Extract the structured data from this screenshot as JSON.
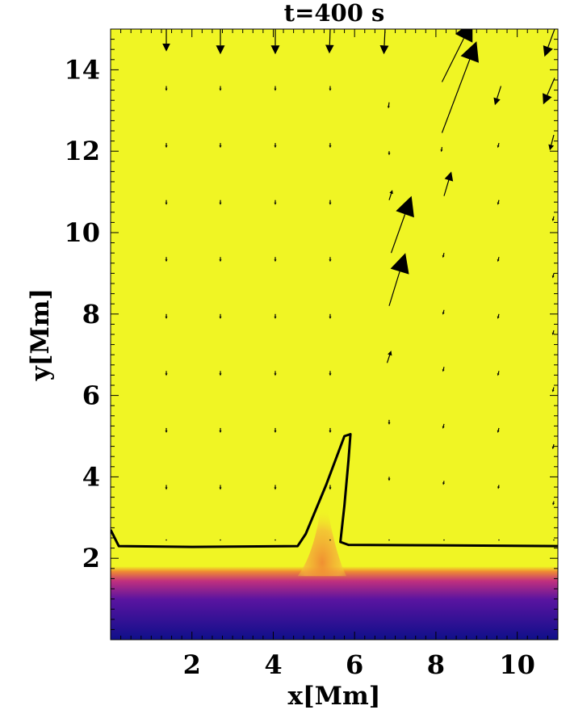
{
  "chart_data": {
    "type": "heatmap",
    "title": "t=400 s",
    "xlabel": "x[Mm]",
    "ylabel": "y[Mm]",
    "xlim": [
      0,
      11
    ],
    "ylim": [
      0,
      15
    ],
    "x_ticks": [
      {
        "value": 2,
        "label": "2"
      },
      {
        "value": 4,
        "label": "4"
      },
      {
        "value": 6,
        "label": "6"
      },
      {
        "value": 8,
        "label": "8"
      },
      {
        "value": 10,
        "label": "10"
      }
    ],
    "y_ticks": [
      {
        "value": 2,
        "label": "2"
      },
      {
        "value": 4,
        "label": "4"
      },
      {
        "value": 6,
        "label": "6"
      },
      {
        "value": 8,
        "label": "8"
      },
      {
        "value": 10,
        "label": "10"
      },
      {
        "value": 12,
        "label": "12"
      },
      {
        "value": 14,
        "label": "14"
      }
    ],
    "colormap": [
      "#0f0f8a",
      "#5a14a0",
      "#c0307e",
      "#f08a32",
      "#f0f524"
    ],
    "background_color": "#f0f524",
    "layers": {
      "dense_layer_top_y": 1.8,
      "colormap_direction": "y ascending low-to-high"
    },
    "plume": {
      "x": [
        4.6,
        5.8
      ],
      "y": [
        1.8,
        3.8
      ]
    },
    "contour": [
      [
        0.0,
        2.7
      ],
      [
        0.2,
        2.3
      ],
      [
        2.0,
        2.28
      ],
      [
        4.6,
        2.3
      ],
      [
        4.8,
        2.6
      ],
      [
        5.3,
        3.8
      ],
      [
        5.75,
        5.0
      ],
      [
        5.9,
        5.05
      ],
      [
        5.85,
        4.4
      ],
      [
        5.75,
        3.3
      ],
      [
        5.65,
        2.4
      ],
      [
        5.85,
        2.33
      ],
      [
        8.0,
        2.32
      ],
      [
        11.0,
        2.3
      ]
    ],
    "arrows": [
      {
        "x": 1.37,
        "y": 15.0,
        "dx": 0.0,
        "dy": -0.55
      },
      {
        "x": 2.7,
        "y": 15.0,
        "dx": 0.0,
        "dy": -0.62
      },
      {
        "x": 4.05,
        "y": 15.0,
        "dx": 0.0,
        "dy": -0.62
      },
      {
        "x": 5.4,
        "y": 15.0,
        "dx": -0.02,
        "dy": -0.6
      },
      {
        "x": 6.75,
        "y": 15.0,
        "dx": -0.03,
        "dy": -0.62
      },
      {
        "x": 8.15,
        "y": 13.7,
        "dx": 0.75,
        "dy": 1.5
      },
      {
        "x": 8.15,
        "y": 12.45,
        "dx": 0.85,
        "dy": 2.25
      },
      {
        "x": 10.92,
        "y": 15.0,
        "dx": -0.25,
        "dy": -0.68
      },
      {
        "x": 9.6,
        "y": 13.6,
        "dx": -0.15,
        "dy": -0.47
      },
      {
        "x": 10.92,
        "y": 13.8,
        "dx": -0.28,
        "dy": -0.65
      },
      {
        "x": 10.9,
        "y": 12.4,
        "dx": -0.1,
        "dy": -0.38
      },
      {
        "x": 6.9,
        "y": 9.5,
        "dx": 0.5,
        "dy": 1.4
      },
      {
        "x": 6.85,
        "y": 8.2,
        "dx": 0.4,
        "dy": 1.3
      },
      {
        "x": 8.2,
        "y": 10.9,
        "dx": 0.18,
        "dy": 0.6
      },
      {
        "x": 6.8,
        "y": 6.8,
        "dx": 0.1,
        "dy": 0.3
      },
      {
        "x": 6.85,
        "y": 10.8,
        "dx": 0.08,
        "dy": 0.25
      },
      {
        "x": 6.85,
        "y": 13.2,
        "dx": -0.02,
        "dy": -0.15
      },
      {
        "x": 8.15,
        "y": 12.1,
        "dx": -0.02,
        "dy": -0.12
      },
      {
        "x": 10.9,
        "y": 10.4,
        "dx": -0.03,
        "dy": -0.12
      },
      {
        "x": 10.9,
        "y": 9.0,
        "dx": -0.03,
        "dy": -0.12
      },
      {
        "x": 10.9,
        "y": 7.6,
        "dx": -0.03,
        "dy": -0.12
      },
      {
        "x": 10.9,
        "y": 6.2,
        "dx": -0.03,
        "dy": -0.12
      },
      {
        "x": 10.9,
        "y": 4.8,
        "dx": -0.03,
        "dy": -0.12
      },
      {
        "x": 10.9,
        "y": 3.4,
        "dx": -0.02,
        "dy": -0.1
      },
      {
        "x": 9.55,
        "y": 12.2,
        "dx": -0.03,
        "dy": -0.12
      },
      {
        "x": 9.55,
        "y": 10.8,
        "dx": -0.03,
        "dy": -0.12
      },
      {
        "x": 9.55,
        "y": 9.4,
        "dx": -0.03,
        "dy": -0.12
      },
      {
        "x": 9.55,
        "y": 8.0,
        "dx": -0.03,
        "dy": -0.12
      },
      {
        "x": 9.55,
        "y": 6.6,
        "dx": -0.03,
        "dy": -0.12
      },
      {
        "x": 9.55,
        "y": 5.2,
        "dx": -0.03,
        "dy": -0.12
      },
      {
        "x": 9.55,
        "y": 3.8,
        "dx": -0.02,
        "dy": -0.1
      },
      {
        "x": 8.2,
        "y": 9.5,
        "dx": -0.03,
        "dy": -0.12
      },
      {
        "x": 8.2,
        "y": 8.1,
        "dx": -0.03,
        "dy": -0.12
      },
      {
        "x": 8.2,
        "y": 6.7,
        "dx": -0.03,
        "dy": -0.12
      },
      {
        "x": 8.2,
        "y": 5.3,
        "dx": -0.03,
        "dy": -0.12
      },
      {
        "x": 8.2,
        "y": 3.9,
        "dx": -0.02,
        "dy": -0.1
      },
      {
        "x": 6.85,
        "y": 12.0,
        "dx": 0.0,
        "dy": -0.1
      },
      {
        "x": 6.85,
        "y": 5.4,
        "dx": 0.0,
        "dy": -0.12
      },
      {
        "x": 6.85,
        "y": 4.0,
        "dx": 0.0,
        "dy": -0.1
      }
    ],
    "grid_arrow_columns": [
      1.37,
      2.7,
      4.05,
      5.4
    ],
    "grid_arrow_rows": [
      13.6,
      12.2,
      10.8,
      9.4,
      8.0,
      6.6,
      5.2,
      3.8
    ]
  }
}
